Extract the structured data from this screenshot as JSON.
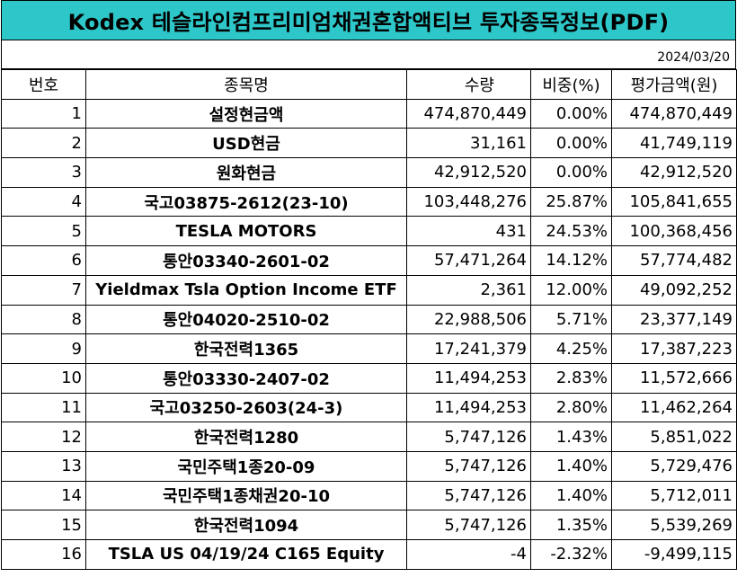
{
  "title": "Kodex 테슬라인컴프리미엄채권혼합액티브 투자종목정보(PDF)",
  "date": "2024/03/20",
  "headers": [
    "번호",
    "종목명",
    "수량",
    "비중(%)",
    "평가금액(원)"
  ],
  "rows": [
    {
      "no": "1",
      "name": "설정현금액",
      "qty": "474,870,449",
      "weight": "0.00%",
      "value": "474,870,449"
    },
    {
      "no": "2",
      "name": "USD현금",
      "qty": "31,161",
      "weight": "0.00%",
      "value": "41,749,119"
    },
    {
      "no": "3",
      "name": "원화현금",
      "qty": "42,912,520",
      "weight": "0.00%",
      "value": "42,912,520"
    },
    {
      "no": "4",
      "name": "국고03875-2612(23-10)",
      "qty": "103,448,276",
      "weight": "25.87%",
      "value": "105,841,655"
    },
    {
      "no": "5",
      "name": "TESLA MOTORS",
      "qty": "431",
      "weight": "24.53%",
      "value": "100,368,456"
    },
    {
      "no": "6",
      "name": "통안03340-2601-02",
      "qty": "57,471,264",
      "weight": "14.12%",
      "value": "57,774,482"
    },
    {
      "no": "7",
      "name": "Yieldmax Tsla Option Income ETF",
      "qty": "2,361",
      "weight": "12.00%",
      "value": "49,092,252"
    },
    {
      "no": "8",
      "name": "통안04020-2510-02",
      "qty": "22,988,506",
      "weight": "5.71%",
      "value": "23,377,149"
    },
    {
      "no": "9",
      "name": "한국전력1365",
      "qty": "17,241,379",
      "weight": "4.25%",
      "value": "17,387,223"
    },
    {
      "no": "10",
      "name": "통안03330-2407-02",
      "qty": "11,494,253",
      "weight": "2.83%",
      "value": "11,572,666"
    },
    {
      "no": "11",
      "name": "국고03250-2603(24-3)",
      "qty": "11,494,253",
      "weight": "2.80%",
      "value": "11,462,264"
    },
    {
      "no": "12",
      "name": "한국전력1280",
      "qty": "5,747,126",
      "weight": "1.43%",
      "value": "5,851,022"
    },
    {
      "no": "13",
      "name": "국민주택1종20-09",
      "qty": "5,747,126",
      "weight": "1.40%",
      "value": "5,729,476"
    },
    {
      "no": "14",
      "name": "국민주택1종채권20-10",
      "qty": "5,747,126",
      "weight": "1.40%",
      "value": "5,712,011"
    },
    {
      "no": "15",
      "name": "한국전력1094",
      "qty": "5,747,126",
      "weight": "1.35%",
      "value": "5,539,269"
    },
    {
      "no": "16",
      "name": "TSLA US 04/19/24 C165 Equity",
      "qty": "-4",
      "weight": "-2.32%",
      "value": "-9,499,115"
    }
  ]
}
